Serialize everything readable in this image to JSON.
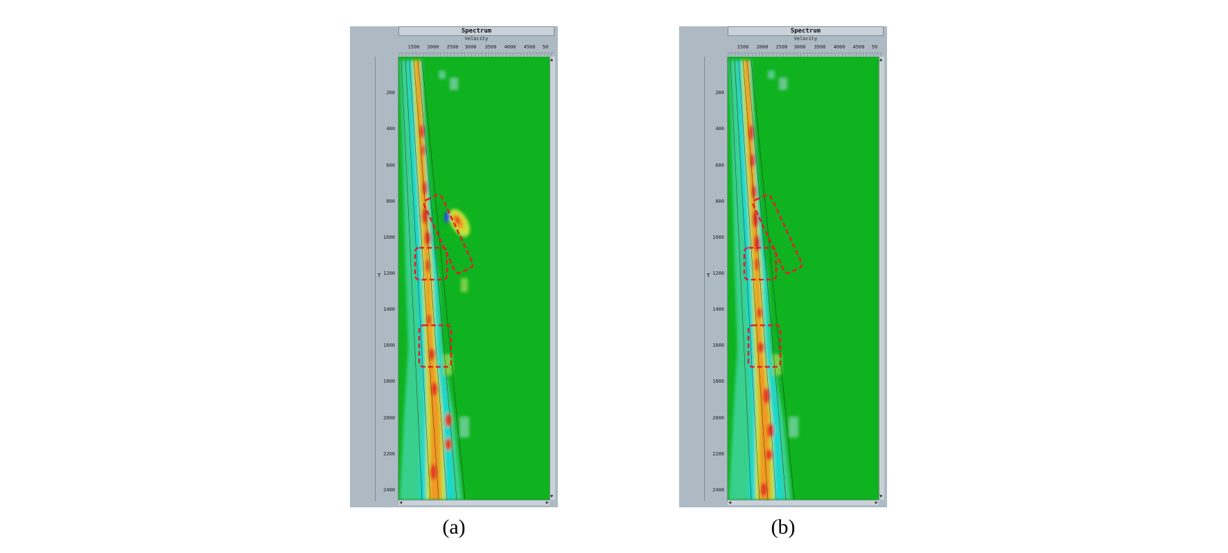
{
  "panels": [
    {
      "id": "a",
      "window_title": "Spectrum",
      "x_axis_label": "Velocity",
      "x_ticks": [
        "1500",
        "2000",
        "2500",
        "3000",
        "3500",
        "4000",
        "4500",
        "50"
      ],
      "y_axis_label": "T",
      "y_ticks": [
        "200",
        "400",
        "600",
        "800",
        "1000",
        "1200",
        "1400",
        "1600",
        "1800",
        "2000",
        "2200",
        "2400"
      ],
      "caption": "(a)",
      "highlight_boxes": 3,
      "has_secondary_anomaly": true
    },
    {
      "id": "b",
      "window_title": "Spectrum",
      "x_axis_label": "Velocity",
      "x_ticks": [
        "1500",
        "2000",
        "2500",
        "3000",
        "3500",
        "4000",
        "4500",
        "50"
      ],
      "y_axis_label": "T",
      "y_ticks": [
        "200",
        "400",
        "600",
        "800",
        "1000",
        "1200",
        "1400",
        "1600",
        "1800",
        "2000",
        "2200",
        "2400"
      ],
      "caption": "(b)",
      "highlight_boxes": 3,
      "has_secondary_anomaly": false
    }
  ],
  "colors": {
    "background_field": "#0fb21f",
    "low_energy": "#15d7cf",
    "mid_energy": "#c7e23c",
    "high_energy": "#f28c1e",
    "peak_energy": "#e32222",
    "highlight_box": "#e0202a",
    "window_chrome": "#aebac3"
  }
}
